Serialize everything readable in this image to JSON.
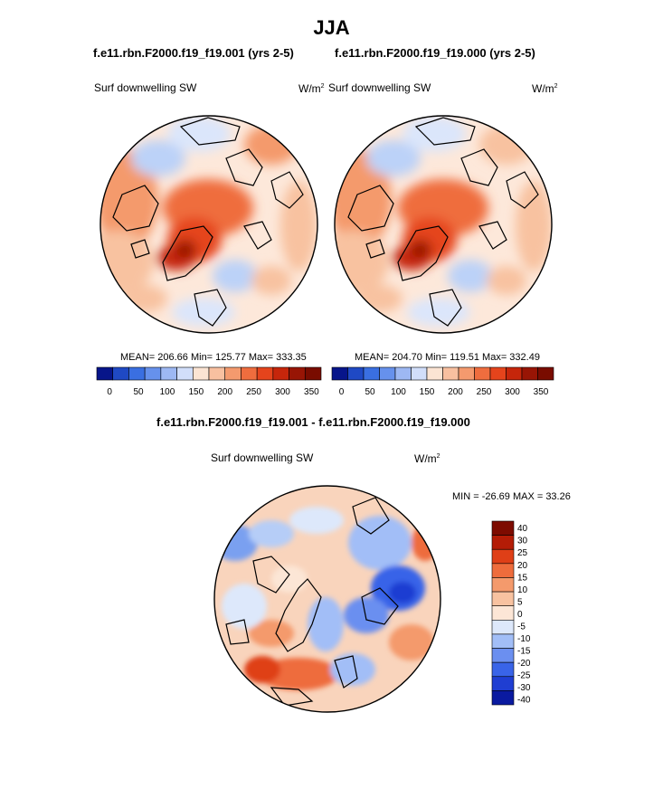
{
  "season": "JJA",
  "colors": {
    "seq": [
      "#07158a",
      "#1f49c4",
      "#3a6fe1",
      "#6691ec",
      "#9db8f3",
      "#d1defa",
      "#fbe4d3",
      "#f8c0a0",
      "#f49a6e",
      "#ef6d3e",
      "#e5441c",
      "#c6260b",
      "#981505",
      "#790c00"
    ],
    "div": [
      "#0a1aa0",
      "#1f3ed2",
      "#3964e8",
      "#6b8ff0",
      "#a2bef7",
      "#dde8fb",
      "#fce6d6",
      "#f8c2a0",
      "#f49a6c",
      "#ee6c3c",
      "#df3f17",
      "#b41c06",
      "#7d0b00"
    ],
    "land_line": "#000000",
    "polar_blue": "#d3e3fb",
    "polar_warm": "#f9c9ab"
  },
  "chart_data": [
    {
      "type": "heatmap",
      "projection": "polar-stereographic",
      "title": "f.e11.rbn.F2000.f19_f19.001 (yrs 2-5)",
      "variable": "Surf downwelling SW",
      "units_base": "W/m",
      "units_exp": "2",
      "stats": {
        "mean": 206.66,
        "min": 125.77,
        "max": 333.35
      },
      "stats_text": "MEAN= 206.66  Min= 125.77  Max= 333.35",
      "levels": [
        0,
        25,
        50,
        75,
        100,
        125,
        150,
        175,
        200,
        225,
        250,
        275,
        300,
        325,
        350
      ],
      "tick_labels": [
        "0",
        "50",
        "100",
        "150",
        "200",
        "250",
        "300",
        "350"
      ]
    },
    {
      "type": "heatmap",
      "projection": "polar-stereographic",
      "title": "f.e11.rbn.F2000.f19_f19.000 (yrs 2-5)",
      "variable": "Surf downwelling SW",
      "units_base": "W/m",
      "units_exp": "2",
      "stats": {
        "mean": 204.7,
        "min": 119.51,
        "max": 332.49
      },
      "stats_text": "MEAN= 204.70  Min= 119.51  Max= 332.49",
      "levels": [
        0,
        25,
        50,
        75,
        100,
        125,
        150,
        175,
        200,
        225,
        250,
        275,
        300,
        325,
        350
      ],
      "tick_labels": [
        "0",
        "50",
        "100",
        "150",
        "200",
        "250",
        "300",
        "350"
      ]
    },
    {
      "type": "heatmap",
      "projection": "polar-stereographic",
      "title": "f.e11.rbn.F2000.f19_f19.001 - f.e11.rbn.F2000.f19_f19.000",
      "variable": "Surf downwelling SW",
      "units_base": "W/m",
      "units_exp": "2",
      "stats": {
        "min": -26.69,
        "max": 33.26
      },
      "stats_text": "MIN = -26.69 MAX =  33.26",
      "levels": [
        -40,
        -30,
        -25,
        -20,
        -15,
        -10,
        -5,
        0,
        5,
        10,
        15,
        20,
        25,
        30,
        40
      ],
      "tick_labels": [
        "40",
        "30",
        "25",
        "20",
        "15",
        "10",
        "5",
        "0",
        "-5",
        "-10",
        "-15",
        "-20",
        "-25",
        "-30",
        "-40"
      ]
    }
  ]
}
